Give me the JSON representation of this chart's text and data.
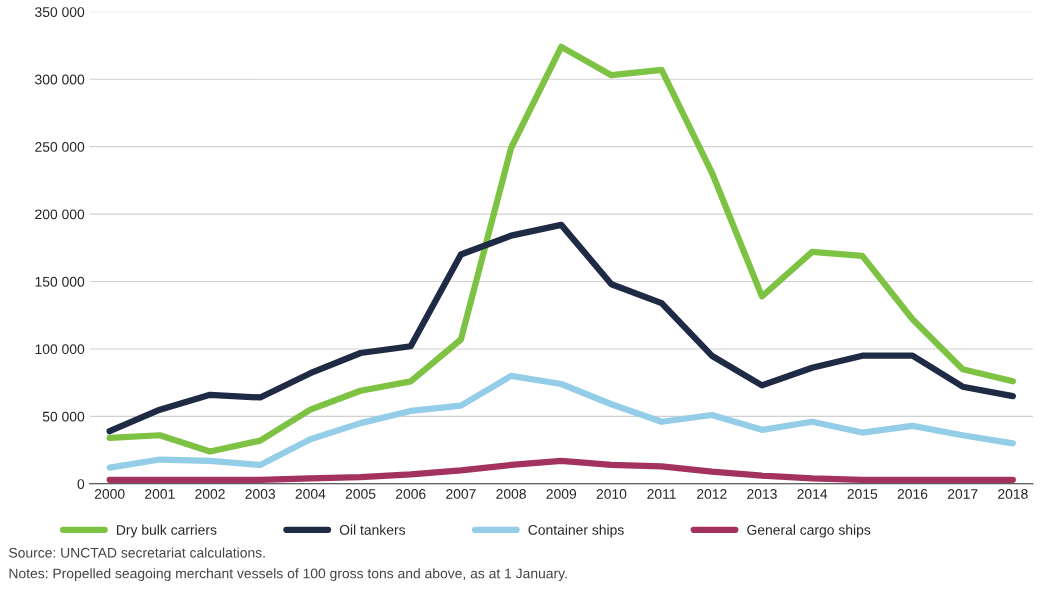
{
  "chart_data": {
    "type": "line",
    "x": [
      2000,
      2001,
      2002,
      2003,
      2004,
      2005,
      2006,
      2007,
      2008,
      2009,
      2010,
      2011,
      2012,
      2013,
      2014,
      2015,
      2016,
      2017,
      2018
    ],
    "series": [
      {
        "name": "Dry bulk carriers",
        "color": "#7dc242",
        "values": [
          34000,
          36000,
          24000,
          32000,
          55000,
          69000,
          76000,
          107000,
          249000,
          324000,
          303000,
          307000,
          231000,
          139000,
          172000,
          169000,
          122000,
          85000,
          76000
        ]
      },
      {
        "name": "Oil tankers",
        "color": "#1f2a44",
        "values": [
          39000,
          55000,
          66000,
          64000,
          82000,
          97000,
          102000,
          170000,
          184000,
          192000,
          148000,
          134000,
          95000,
          73000,
          86000,
          95000,
          95000,
          72000,
          65000
        ]
      },
      {
        "name": "Container ships",
        "color": "#93cde8",
        "values": [
          12000,
          18000,
          17000,
          14000,
          33000,
          45000,
          54000,
          58000,
          80000,
          74000,
          59000,
          46000,
          51000,
          40000,
          46000,
          38000,
          43000,
          36000,
          30000
        ]
      },
      {
        "name": "General cargo ships",
        "color": "#a3325f",
        "values": [
          3000,
          3000,
          3000,
          3000,
          4000,
          5000,
          7000,
          10000,
          14000,
          17000,
          14000,
          13000,
          9000,
          6000,
          4000,
          3000,
          3000,
          3000,
          3000
        ]
      }
    ],
    "xlim": [
      1999.6,
      2018.4
    ],
    "xticks": [
      2000,
      2001,
      2002,
      2003,
      2004,
      2005,
      2006,
      2007,
      2008,
      2009,
      2010,
      2011,
      2012,
      2013,
      2014,
      2015,
      2016,
      2017,
      2018
    ],
    "ylim": [
      0,
      350000
    ],
    "yticks": [
      0,
      {
        "value": 50000,
        "label": "50 000"
      },
      {
        "value": 100000,
        "label": "100 000"
      },
      {
        "value": 150000,
        "label": "150 000"
      },
      {
        "value": 200000,
        "label": "200 000"
      },
      {
        "value": 250000,
        "label": "250 000"
      },
      {
        "value": 300000,
        "label": "300 000"
      },
      {
        "value": 350000,
        "label": "350 000"
      }
    ],
    "grid": "y",
    "legend": "bottom",
    "marker": "none",
    "line_style": "solid",
    "annotations": [
      "Source: UNCTAD secretariat calculations.",
      "Notes: Propelled seagoing merchant vessels of 100 gross tons and above, as at 1 January."
    ]
  }
}
